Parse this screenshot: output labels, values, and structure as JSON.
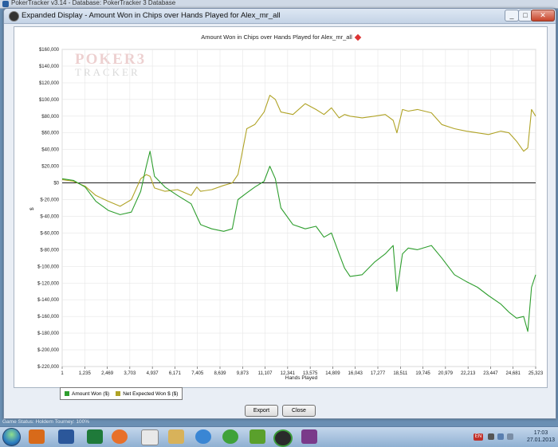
{
  "app_bar": {
    "title": "PokerTracker v3.14 - Database: PokerTracker 3 Database"
  },
  "window": {
    "title": "Expanded Display - Amount Won in Chips over Hands Played for Alex_mr_all",
    "minimize_label": "_",
    "maximize_label": "□",
    "close_label": "✕"
  },
  "watermark": {
    "line1": "POKER",
    "line2": "TRACKER",
    "digit": "3"
  },
  "legend": {
    "amount_won": "Amount Won ($)",
    "net_expected": "Net Expected Won $ ($)"
  },
  "buttons": {
    "export": "Export",
    "close": "Close"
  },
  "status_line": "Game Status: Holdem Tourney: 100%",
  "taskbar": {
    "icons": [
      "media-player-icon",
      "word-icon",
      "excel-icon",
      "firefox-icon",
      "notepad-icon",
      "paint-icon",
      "ie-icon",
      "frog-icon",
      "utorrent-icon",
      "poker-chip-icon",
      "winrar-icon"
    ],
    "language": "EN",
    "time": "17:03",
    "date": "27.01.2013"
  },
  "colors": {
    "amount_won": "#2e9e2e",
    "net_expected": "#b0a326",
    "zero_line": "#000000",
    "grid": "#e6e6e6"
  },
  "chart_data": {
    "type": "line",
    "title": "Amount Won in Chips over Hands Played for Alex_mr_all",
    "xlabel": "Hands Played",
    "ylabel": "$",
    "xlim": [
      1,
      25323
    ],
    "ylim": [
      -220000,
      160000
    ],
    "x_ticks": [
      "1",
      "1,235",
      "2,469",
      "3,703",
      "4,937",
      "6,171",
      "7,405",
      "8,639",
      "9,873",
      "11,107",
      "12,341",
      "13,575",
      "14,809",
      "16,043",
      "17,277",
      "18,511",
      "19,745",
      "20,979",
      "22,213",
      "23,447",
      "24,681",
      "25,323"
    ],
    "y_ticks": [
      "$160,000",
      "$140,000",
      "$120,000",
      "$100,000",
      "$80,000",
      "$60,000",
      "$40,000",
      "$20,000",
      "$0",
      "$-20,000",
      "$-40,000",
      "$-60,000",
      "$-80,000",
      "$-100,000",
      "$-120,000",
      "$-140,000",
      "$-160,000",
      "$-180,000",
      "$-200,000",
      "$-220,000"
    ],
    "y_tick_values": [
      160000,
      140000,
      120000,
      100000,
      80000,
      60000,
      40000,
      20000,
      0,
      -20000,
      -40000,
      -60000,
      -80000,
      -100000,
      -120000,
      -140000,
      -160000,
      -180000,
      -200000,
      -220000
    ],
    "grid": true,
    "legend_position": "bottom-left",
    "series": [
      {
        "name": "Amount Won ($)",
        "x": [
          1,
          600,
          1235,
          1800,
          2469,
          3100,
          3703,
          4200,
          4500,
          4700,
          4937,
          5500,
          6171,
          6900,
          7200,
          7405,
          8000,
          8639,
          9100,
          9400,
          9873,
          10300,
          10800,
          11107,
          11400,
          11700,
          12341,
          13000,
          13575,
          14000,
          14400,
          14809,
          15100,
          15400,
          16043,
          16700,
          17277,
          17700,
          17900,
          18200,
          18511,
          19000,
          19745,
          20300,
          20979,
          21600,
          22213,
          22800,
          23447,
          23900,
          24300,
          24681,
          24900,
          25100,
          25323
        ],
        "y": [
          5000,
          3000,
          -5000,
          -22000,
          -33000,
          -38000,
          -35000,
          -10000,
          20000,
          38000,
          8000,
          -5000,
          -15000,
          -25000,
          -40000,
          -50000,
          -55000,
          -58000,
          -55000,
          -20000,
          -12000,
          -5000,
          2000,
          20000,
          5000,
          -30000,
          -50000,
          -55000,
          -52000,
          -65000,
          -60000,
          -85000,
          -102000,
          -112000,
          -110000,
          -95000,
          -85000,
          -75000,
          -130000,
          -85000,
          -78000,
          -80000,
          -75000,
          -90000,
          -110000,
          -118000,
          -125000,
          -135000,
          -145000,
          -155000,
          -162000,
          -160000,
          -178000,
          -125000,
          -110000
        ]
      },
      {
        "name": "Net Expected Won $ ($)",
        "x": [
          1,
          600,
          1235,
          1800,
          2469,
          3100,
          3703,
          4200,
          4500,
          4700,
          4937,
          5500,
          6171,
          6900,
          7200,
          7405,
          8000,
          8639,
          9100,
          9400,
          9873,
          10300,
          10800,
          11107,
          11400,
          11700,
          12341,
          13000,
          13575,
          14000,
          14400,
          14809,
          15100,
          15400,
          16043,
          16700,
          17277,
          17700,
          17900,
          18200,
          18511,
          19000,
          19745,
          20300,
          20979,
          21600,
          22213,
          22800,
          23447,
          23900,
          24300,
          24681,
          24900,
          25100,
          25323
        ],
        "y": [
          4000,
          2000,
          -4000,
          -15000,
          -22000,
          -28000,
          -20000,
          5000,
          10000,
          8000,
          -6000,
          -10000,
          -8000,
          -15000,
          -5000,
          -10000,
          -8000,
          -3000,
          0,
          10000,
          65000,
          70000,
          85000,
          105000,
          100000,
          85000,
          82000,
          95000,
          88000,
          82000,
          90000,
          78000,
          82000,
          80000,
          78000,
          80000,
          82000,
          75000,
          60000,
          88000,
          86000,
          88000,
          84000,
          70000,
          65000,
          62000,
          60000,
          58000,
          62000,
          60000,
          50000,
          38000,
          42000,
          88000,
          80000
        ]
      }
    ]
  }
}
